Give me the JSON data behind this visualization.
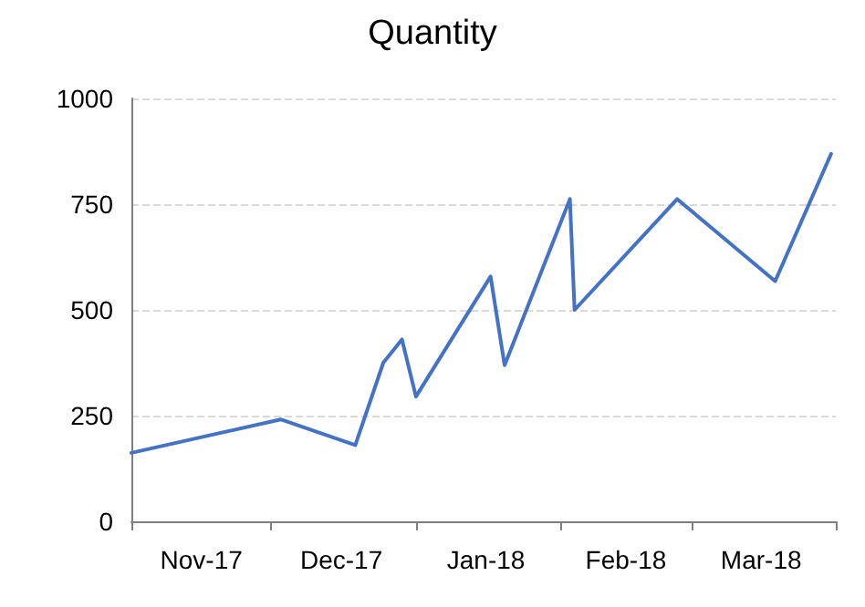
{
  "chart_data": {
    "type": "line",
    "title": "Quantity",
    "x": [
      "2017-11-01",
      "2017-12-03",
      "2017-12-19",
      "2017-12-25",
      "2017-12-29",
      "2018-01-01",
      "2018-01-17",
      "2018-01-20",
      "2018-02-03",
      "2018-02-04",
      "2018-02-26",
      "2018-03-19",
      "2018-03-31"
    ],
    "series": [
      {
        "color": "#4472c4",
        "values": [
          162,
          241,
          180,
          375,
          430,
          295,
          579,
          369,
          762,
          500,
          762,
          568,
          869
        ]
      }
    ],
    "xlim": [
      "2017-11-01",
      "2018-04-01"
    ],
    "xticks": [
      {
        "value": "2017-11-01",
        "label": null
      },
      {
        "value": "2017-11-16",
        "label": "Nov-17"
      },
      {
        "value": "2017-12-01",
        "label": null
      },
      {
        "value": "2017-12-16",
        "label": "Dec-17"
      },
      {
        "value": "2018-01-01",
        "label": null
      },
      {
        "value": "2018-01-16",
        "label": "Jan-18"
      },
      {
        "value": "2018-02-01",
        "label": null
      },
      {
        "value": "2018-02-15",
        "label": "Feb-18"
      },
      {
        "value": "2018-03-01",
        "label": null
      },
      {
        "value": "2018-03-16",
        "label": "Mar-18"
      },
      {
        "value": "2018-04-01",
        "label": null
      }
    ],
    "ylim": [
      0,
      1000
    ],
    "yticks": [
      0,
      250,
      500,
      750,
      1000
    ],
    "grid": "y",
    "marker": "none",
    "line_style": "solid"
  }
}
